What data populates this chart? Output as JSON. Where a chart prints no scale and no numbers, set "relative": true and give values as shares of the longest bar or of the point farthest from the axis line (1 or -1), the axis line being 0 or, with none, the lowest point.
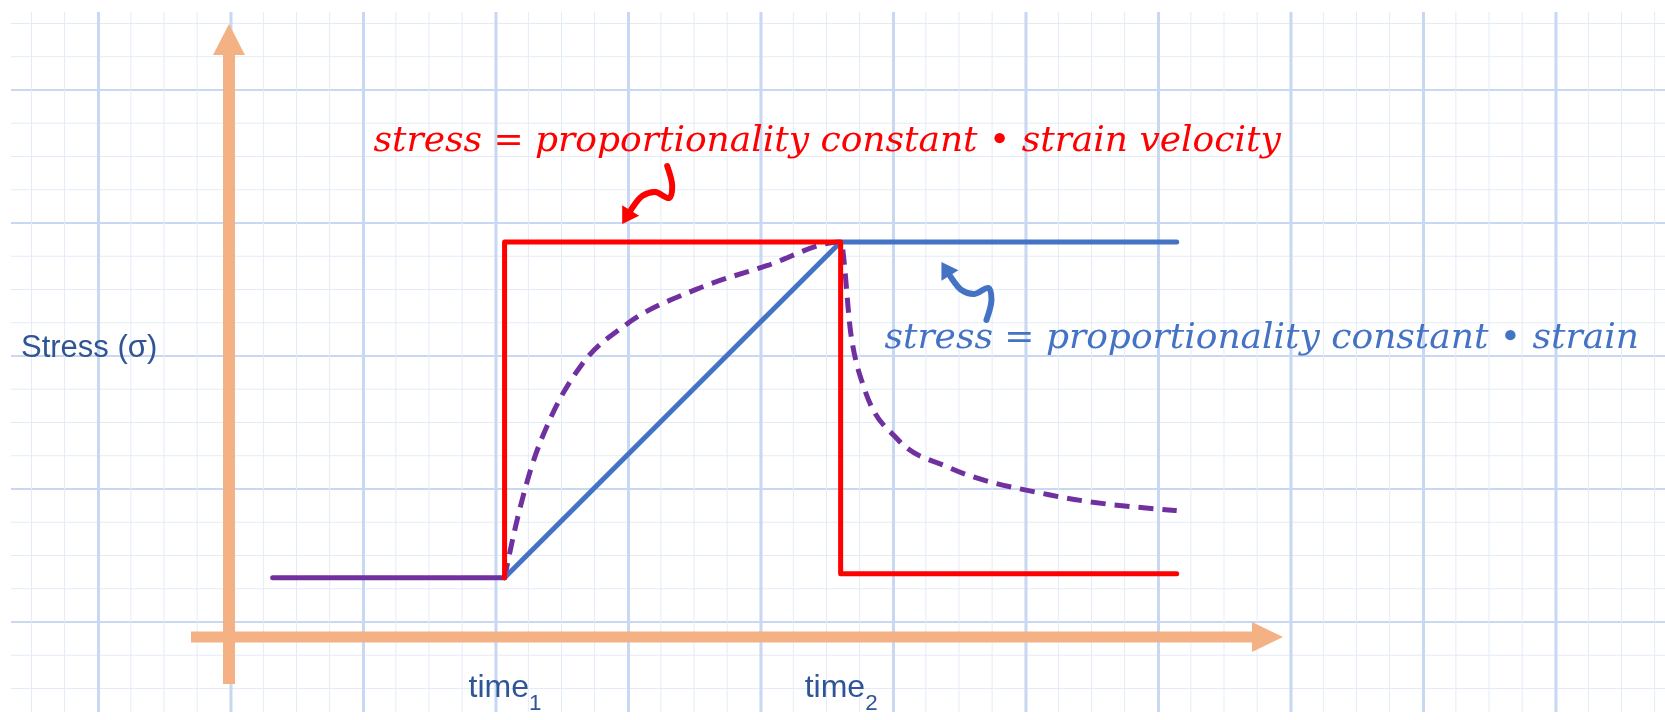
{
  "chart_data": {
    "type": "line",
    "ylabel": "Stress (σ)",
    "relative": true,
    "xlim": [
      0.18,
      3.23
    ],
    "xticks": [
      {
        "value": 1,
        "label": "time$_{1}$"
      },
      {
        "value": 2,
        "label": "time$_{2}$"
      }
    ],
    "series": [
      {
        "color": "#7030a0",
        "x": [
          0.31,
          1
        ],
        "values": [
          0.15,
          0.15
        ]
      },
      {
        "color": "#7030a0",
        "line_style": "dashed",
        "x": [
          1,
          1.03,
          1.08,
          1.14,
          1.23,
          1.36,
          1.57,
          1.78,
          2,
          2.03,
          2.07,
          2.17,
          2.32,
          2.62,
          3
        ],
        "values": [
          0.15,
          0.27,
          0.43,
          0.56,
          0.69,
          0.79,
          0.88,
          0.94,
          1,
          0.77,
          0.63,
          0.5,
          0.43,
          0.36,
          0.32
        ]
      },
      {
        "color": "#4472c4",
        "x": [
          1,
          2,
          3
        ],
        "values": [
          0.15,
          1,
          1
        ]
      },
      {
        "color": "#ff0000",
        "x": [
          1,
          1,
          2,
          2,
          3
        ],
        "values": [
          0.15,
          1,
          1,
          0.16,
          0.16
        ]
      }
    ],
    "annotations": [
      {
        "text": "stress = proportionality constant • strain velocity",
        "x": 1.35,
        "y": 1
      },
      {
        "text": "stress = proportionality constant • strain",
        "x": 2.3,
        "y": 1
      }
    ]
  }
}
